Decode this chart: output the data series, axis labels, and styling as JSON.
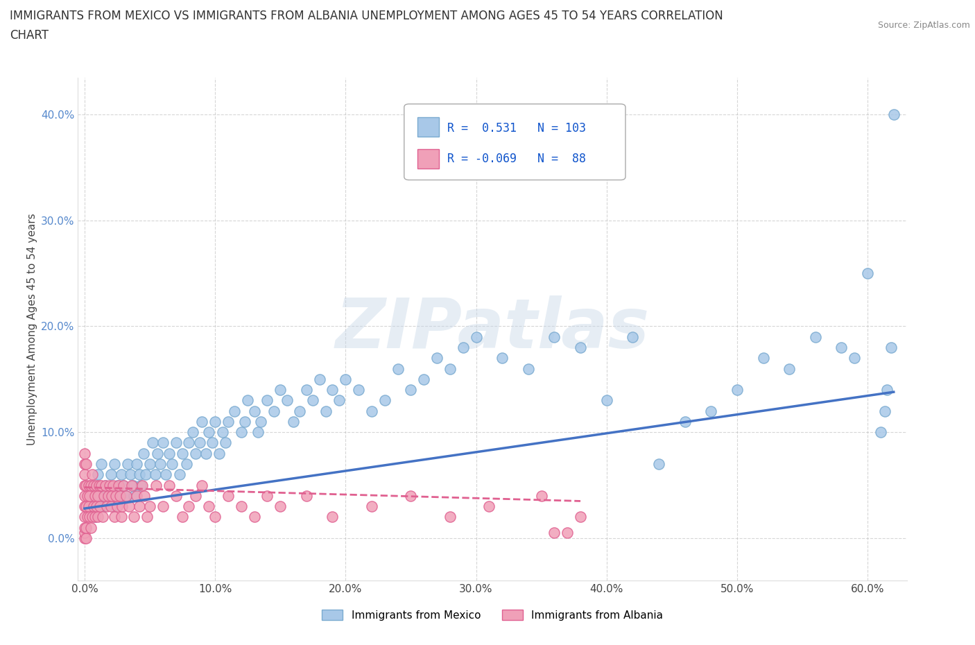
{
  "title_line1": "IMMIGRANTS FROM MEXICO VS IMMIGRANTS FROM ALBANIA UNEMPLOYMENT AMONG AGES 45 TO 54 YEARS CORRELATION",
  "title_line2": "CHART",
  "source": "Source: ZipAtlas.com",
  "xlabel_label": "Immigrants from Mexico",
  "xlabel_label2": "Immigrants from Albania",
  "ylabel": "Unemployment Among Ages 45 to 54 years",
  "watermark": "ZIPatlas",
  "mexico_R": 0.531,
  "mexico_N": 103,
  "albania_R": -0.069,
  "albania_N": 88,
  "mexico_color": "#A8C8E8",
  "mexico_edge_color": "#7AAAD0",
  "albania_color": "#F0A0B8",
  "albania_edge_color": "#E06090",
  "mexico_line_color": "#4472C4",
  "albania_line_color": "#E06090",
  "xlim": [
    -0.005,
    0.63
  ],
  "ylim": [
    -0.04,
    0.435
  ],
  "xticks": [
    0.0,
    0.1,
    0.2,
    0.3,
    0.4,
    0.5,
    0.6
  ],
  "xtick_labels": [
    "0.0%",
    "10.0%",
    "20.0%",
    "30.0%",
    "40.0%",
    "50.0%",
    "60.0%"
  ],
  "yticks": [
    0.0,
    0.1,
    0.2,
    0.3,
    0.4
  ],
  "ytick_labels": [
    "0.0%",
    "10.0%",
    "20.0%",
    "30.0%",
    "40.0%"
  ],
  "background_color": "#ffffff",
  "grid_color": "#bbbbbb",
  "title_fontsize": 12,
  "axis_label_fontsize": 11,
  "tick_fontsize": 11,
  "legend_fontsize": 12,
  "watermark_fontsize": 72,
  "watermark_color": "#c8d8e8",
  "watermark_alpha": 0.45,
  "mexico_trend_x0": 0.0,
  "mexico_trend_y0": 0.028,
  "mexico_trend_x1": 0.62,
  "mexico_trend_y1": 0.138,
  "albania_trend_x0": 0.0,
  "albania_trend_y0": 0.048,
  "albania_trend_x1": 0.38,
  "albania_trend_y1": 0.035,
  "mexico_x": [
    0.005,
    0.007,
    0.008,
    0.01,
    0.012,
    0.013,
    0.015,
    0.016,
    0.018,
    0.02,
    0.022,
    0.023,
    0.025,
    0.027,
    0.028,
    0.03,
    0.032,
    0.033,
    0.035,
    0.037,
    0.038,
    0.04,
    0.042,
    0.043,
    0.045,
    0.047,
    0.05,
    0.052,
    0.054,
    0.056,
    0.058,
    0.06,
    0.062,
    0.065,
    0.067,
    0.07,
    0.073,
    0.075,
    0.078,
    0.08,
    0.083,
    0.085,
    0.088,
    0.09,
    0.093,
    0.095,
    0.098,
    0.1,
    0.103,
    0.106,
    0.108,
    0.11,
    0.115,
    0.12,
    0.123,
    0.125,
    0.13,
    0.133,
    0.135,
    0.14,
    0.145,
    0.15,
    0.155,
    0.16,
    0.165,
    0.17,
    0.175,
    0.18,
    0.185,
    0.19,
    0.195,
    0.2,
    0.21,
    0.22,
    0.23,
    0.24,
    0.25,
    0.26,
    0.27,
    0.28,
    0.29,
    0.3,
    0.32,
    0.34,
    0.36,
    0.38,
    0.4,
    0.42,
    0.44,
    0.46,
    0.48,
    0.5,
    0.52,
    0.54,
    0.56,
    0.58,
    0.59,
    0.6,
    0.61,
    0.613,
    0.615,
    0.618,
    0.62
  ],
  "mexico_y": [
    0.03,
    0.05,
    0.02,
    0.06,
    0.04,
    0.07,
    0.03,
    0.05,
    0.04,
    0.06,
    0.03,
    0.07,
    0.05,
    0.04,
    0.06,
    0.05,
    0.04,
    0.07,
    0.06,
    0.05,
    0.04,
    0.07,
    0.06,
    0.05,
    0.08,
    0.06,
    0.07,
    0.09,
    0.06,
    0.08,
    0.07,
    0.09,
    0.06,
    0.08,
    0.07,
    0.09,
    0.06,
    0.08,
    0.07,
    0.09,
    0.1,
    0.08,
    0.09,
    0.11,
    0.08,
    0.1,
    0.09,
    0.11,
    0.08,
    0.1,
    0.09,
    0.11,
    0.12,
    0.1,
    0.11,
    0.13,
    0.12,
    0.1,
    0.11,
    0.13,
    0.12,
    0.14,
    0.13,
    0.11,
    0.12,
    0.14,
    0.13,
    0.15,
    0.12,
    0.14,
    0.13,
    0.15,
    0.14,
    0.12,
    0.13,
    0.16,
    0.14,
    0.15,
    0.17,
    0.16,
    0.18,
    0.19,
    0.17,
    0.16,
    0.19,
    0.18,
    0.13,
    0.19,
    0.07,
    0.11,
    0.12,
    0.14,
    0.17,
    0.16,
    0.19,
    0.18,
    0.17,
    0.25,
    0.1,
    0.12,
    0.14,
    0.18,
    0.4
  ],
  "albania_x": [
    0.0,
    0.0,
    0.0,
    0.0,
    0.0,
    0.0,
    0.0,
    0.0,
    0.0,
    0.0,
    0.001,
    0.001,
    0.001,
    0.001,
    0.001,
    0.002,
    0.002,
    0.003,
    0.003,
    0.004,
    0.004,
    0.005,
    0.005,
    0.006,
    0.006,
    0.007,
    0.007,
    0.008,
    0.008,
    0.009,
    0.009,
    0.01,
    0.01,
    0.011,
    0.012,
    0.013,
    0.014,
    0.015,
    0.016,
    0.017,
    0.018,
    0.019,
    0.02,
    0.021,
    0.022,
    0.023,
    0.024,
    0.025,
    0.026,
    0.027,
    0.028,
    0.029,
    0.03,
    0.032,
    0.034,
    0.036,
    0.038,
    0.04,
    0.042,
    0.044,
    0.046,
    0.048,
    0.05,
    0.055,
    0.06,
    0.065,
    0.07,
    0.075,
    0.08,
    0.085,
    0.09,
    0.095,
    0.1,
    0.11,
    0.12,
    0.13,
    0.14,
    0.15,
    0.17,
    0.19,
    0.22,
    0.25,
    0.28,
    0.31,
    0.35,
    0.38,
    0.37,
    0.36
  ],
  "albania_y": [
    0.0,
    0.005,
    0.01,
    0.02,
    0.03,
    0.04,
    0.05,
    0.06,
    0.07,
    0.08,
    0.0,
    0.01,
    0.03,
    0.05,
    0.07,
    0.02,
    0.04,
    0.03,
    0.05,
    0.02,
    0.04,
    0.01,
    0.05,
    0.02,
    0.06,
    0.03,
    0.05,
    0.02,
    0.04,
    0.03,
    0.05,
    0.02,
    0.04,
    0.05,
    0.03,
    0.05,
    0.02,
    0.04,
    0.05,
    0.03,
    0.04,
    0.05,
    0.03,
    0.04,
    0.05,
    0.02,
    0.04,
    0.03,
    0.05,
    0.04,
    0.02,
    0.03,
    0.05,
    0.04,
    0.03,
    0.05,
    0.02,
    0.04,
    0.03,
    0.05,
    0.04,
    0.02,
    0.03,
    0.05,
    0.03,
    0.05,
    0.04,
    0.02,
    0.03,
    0.04,
    0.05,
    0.03,
    0.02,
    0.04,
    0.03,
    0.02,
    0.04,
    0.03,
    0.04,
    0.02,
    0.03,
    0.04,
    0.02,
    0.03,
    0.04,
    0.02,
    0.005,
    0.005
  ]
}
